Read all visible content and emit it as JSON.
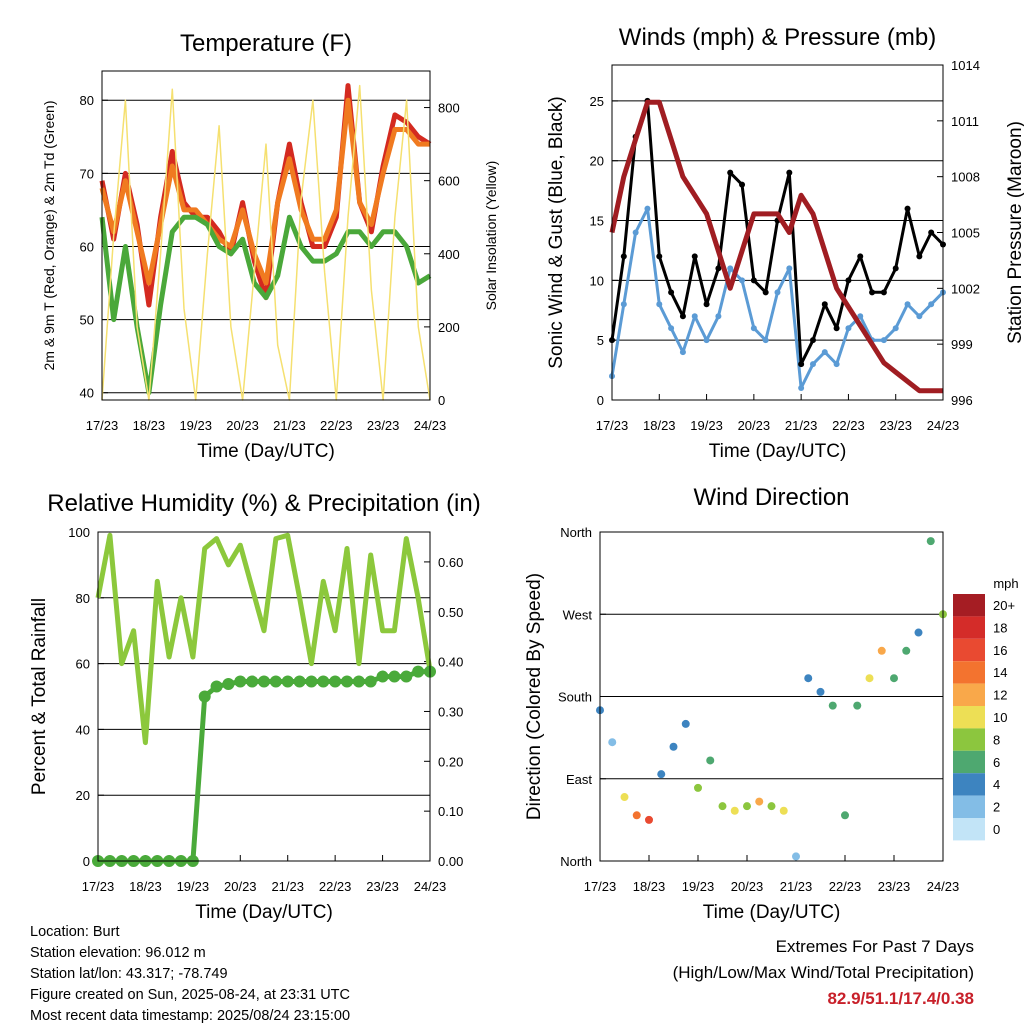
{
  "x_ticks": [
    "17/23",
    "18/23",
    "19/23",
    "20/23",
    "21/23",
    "22/23",
    "23/23",
    "24/23"
  ],
  "x_label": "Time (Day/UTC)",
  "chart_data": [
    {
      "type": "line",
      "title": "Temperature (F)",
      "xlabel": "Time (Day/UTC)",
      "ylabel": "2m & 9m T (Red, Orange) & 2m Td (Green)",
      "y2label": "Solar Insolation (Yellow)",
      "ylim": [
        39,
        84
      ],
      "y2lim": [
        0,
        900
      ],
      "yticks": [
        40,
        50,
        60,
        70,
        80
      ],
      "y2ticks": [
        0,
        200,
        400,
        600,
        800
      ],
      "grid": true,
      "x": [
        0,
        0.25,
        0.5,
        0.75,
        1.0,
        1.25,
        1.5,
        1.75,
        2.0,
        2.25,
        2.5,
        2.75,
        3.0,
        3.25,
        3.5,
        3.75,
        4.0,
        4.25,
        4.5,
        4.75,
        5.0,
        5.25,
        5.5,
        5.75,
        6.0,
        6.25,
        6.5,
        6.75,
        7.0
      ],
      "series": [
        {
          "color": "#d42a20",
          "axis": "left",
          "values": [
            69,
            61,
            70,
            63,
            52,
            64,
            73,
            66,
            64,
            64,
            62,
            59,
            66,
            58,
            53,
            66,
            74,
            66,
            60,
            60,
            64,
            82,
            66,
            62,
            71,
            78,
            77,
            75,
            74
          ]
        },
        {
          "color": "#f07a20",
          "axis": "left",
          "values": [
            68,
            62,
            69,
            62,
            55,
            63,
            71,
            65,
            65,
            63,
            61,
            60,
            65,
            59,
            55,
            66,
            72,
            65,
            61,
            61,
            65,
            80,
            66,
            63,
            70,
            76,
            76,
            74,
            74
          ]
        },
        {
          "color": "#4aa83a",
          "axis": "left",
          "values": [
            64,
            50,
            60,
            49,
            40,
            52,
            62,
            64,
            64,
            63,
            60,
            59,
            61,
            55,
            53,
            56,
            64,
            60,
            58,
            58,
            59,
            62,
            62,
            60,
            62,
            62,
            60,
            55,
            56
          ]
        },
        {
          "color": "#f5e070",
          "axis": "right",
          "values": [
            0,
            450,
            820,
            200,
            0,
            400,
            850,
            250,
            0,
            400,
            750,
            200,
            0,
            350,
            700,
            150,
            0,
            550,
            820,
            350,
            0,
            500,
            860,
            300,
            0,
            500,
            820,
            200,
            0
          ]
        }
      ]
    },
    {
      "type": "line",
      "title": "Winds (mph) & Pressure (mb)",
      "xlabel": "Time (Day/UTC)",
      "ylabel": "Sonic Wind & Gust (Blue, Black)",
      "y2label": "Station Pressure (Maroon)",
      "ylim": [
        0,
        28
      ],
      "y2lim": [
        996,
        1014
      ],
      "yticks": [
        0,
        5,
        10,
        15,
        20,
        25
      ],
      "y2ticks": [
        996,
        999,
        1002,
        1005,
        1008,
        1011,
        1014
      ],
      "grid": true,
      "x": [
        0,
        0.25,
        0.5,
        0.75,
        1.0,
        1.25,
        1.5,
        1.75,
        2.0,
        2.25,
        2.5,
        2.75,
        3.0,
        3.25,
        3.5,
        3.75,
        4.0,
        4.25,
        4.5,
        4.75,
        5.0,
        5.25,
        5.5,
        5.75,
        6.0,
        6.25,
        6.5,
        6.75,
        7.0
      ],
      "series": [
        {
          "name": "Sonic Wind",
          "color": "#5b9bd5",
          "axis": "left",
          "values": [
            2,
            8,
            14,
            16,
            8,
            6,
            4,
            7,
            5,
            7,
            11,
            10,
            6,
            5,
            9,
            11,
            1,
            3,
            4,
            3,
            6,
            7,
            5,
            5,
            6,
            8,
            7,
            8,
            9
          ]
        },
        {
          "name": "Gust",
          "color": "#000000",
          "axis": "left",
          "values": [
            5,
            12,
            22,
            25,
            12,
            9,
            7,
            12,
            8,
            11,
            19,
            18,
            10,
            9,
            15,
            19,
            3,
            5,
            8,
            6,
            10,
            12,
            9,
            9,
            11,
            16,
            12,
            14,
            13
          ]
        },
        {
          "name": "Station Pressure",
          "color": "#a01d22",
          "axis": "right",
          "values": [
            1005,
            1008,
            1010,
            1012,
            1012,
            1010,
            1008,
            1007,
            1006,
            1004,
            1002,
            1004,
            1006,
            1006,
            1006,
            1005,
            1007,
            1006,
            1004,
            1002,
            1001,
            1000,
            999,
            998,
            997.5,
            997,
            996.5,
            996.5,
            996.5
          ]
        }
      ]
    },
    {
      "type": "line",
      "title": "Relative Humidity (%) & Precipitation (in)",
      "xlabel": "Time (Day/UTC)",
      "ylabel": "Percent & Total Rainfall",
      "ylim": [
        0,
        100
      ],
      "y2lim": [
        0,
        0.66
      ],
      "yticks": [
        0,
        20,
        40,
        60,
        80,
        100
      ],
      "y2ticks": [
        "0.00",
        "0.10",
        "0.20",
        "0.30",
        "0.40",
        "0.50",
        "0.60"
      ],
      "grid": true,
      "x": [
        0,
        0.25,
        0.5,
        0.75,
        1.0,
        1.25,
        1.5,
        1.75,
        2.0,
        2.25,
        2.5,
        2.75,
        3.0,
        3.25,
        3.5,
        3.75,
        4.0,
        4.25,
        4.5,
        4.75,
        5.0,
        5.25,
        5.5,
        5.75,
        6.0,
        6.25,
        6.5,
        6.75,
        7.0
      ],
      "series": [
        {
          "name": "Relative Humidity",
          "color": "#8cc83c",
          "axis": "left",
          "values": [
            80,
            99,
            60,
            70,
            36,
            85,
            62,
            80,
            62,
            95,
            98,
            90,
            96,
            83,
            70,
            98,
            99,
            80,
            60,
            85,
            70,
            95,
            60,
            93,
            70,
            70,
            98,
            80,
            58
          ]
        },
        {
          "name": "Total Precipitation",
          "color": "#4aaa3a",
          "axis": "right",
          "values": [
            0,
            0,
            0,
            0,
            0,
            0,
            0,
            0,
            0,
            0.33,
            0.35,
            0.355,
            0.36,
            0.36,
            0.36,
            0.36,
            0.36,
            0.36,
            0.36,
            0.36,
            0.36,
            0.36,
            0.36,
            0.36,
            0.37,
            0.37,
            0.37,
            0.38,
            0.38
          ]
        }
      ]
    },
    {
      "type": "scatter",
      "title": "Wind Direction",
      "xlabel": "Time (Day/UTC)",
      "ylabel": "Direction (Colored By Speed)",
      "ylim": [
        0,
        360
      ],
      "yticks": [
        "North",
        "East",
        "South",
        "West",
        "North"
      ],
      "grid": true,
      "colorbar_title": "mph",
      "colorbar_labels": [
        "20+",
        "18",
        "16",
        "14",
        "12",
        "10",
        "8",
        "6",
        "4",
        "2",
        "0"
      ],
      "colorbar_colors": [
        "#a51d23",
        "#d42c29",
        "#e94a31",
        "#f3732f",
        "#f9a84a",
        "#eddf55",
        "#8cc63e",
        "#4ea870",
        "#3d84c0",
        "#83bde6",
        "#c2e4f7"
      ],
      "x": [
        0,
        0.25,
        0.5,
        0.75,
        1.0,
        1.25,
        1.5,
        1.75,
        2.0,
        2.25,
        2.5,
        2.75,
        3.0,
        3.25,
        3.5,
        3.75,
        4.0,
        4.25,
        4.5,
        4.75,
        5.0,
        5.25,
        5.5,
        5.75,
        6.0,
        6.25,
        6.5,
        6.75,
        7.0
      ],
      "series": [
        {
          "name": "Direction",
          "values": [
            165,
            130,
            70,
            50,
            45,
            95,
            125,
            150,
            80,
            110,
            60,
            55,
            60,
            65,
            60,
            55,
            5,
            200,
            185,
            170,
            50,
            170,
            200,
            230,
            200,
            230,
            250,
            350,
            270
          ],
          "speed": [
            3,
            2,
            10,
            14,
            16,
            4,
            3,
            3,
            8,
            5,
            7,
            10,
            8,
            12,
            8,
            10,
            2,
            3,
            3,
            5,
            6,
            6,
            10,
            12,
            6,
            5,
            4,
            6,
            8
          ]
        }
      ]
    }
  ],
  "info": {
    "location": "Location: Burt",
    "elevation": "Station elevation: 96.012 m",
    "latlon": "Station lat/lon: 43.317; -78.749",
    "created": "Figure created on Sun, 2025-08-24, at 23:31 UTC",
    "recent": "Most recent data timestamp: 2025/08/24 23:15:00"
  },
  "extremes": {
    "line1": "Extremes For Past 7 Days",
    "line2": "(High/Low/Max Wind/Total Precipitation)",
    "values": "82.9/51.1/17.4/0.38"
  }
}
